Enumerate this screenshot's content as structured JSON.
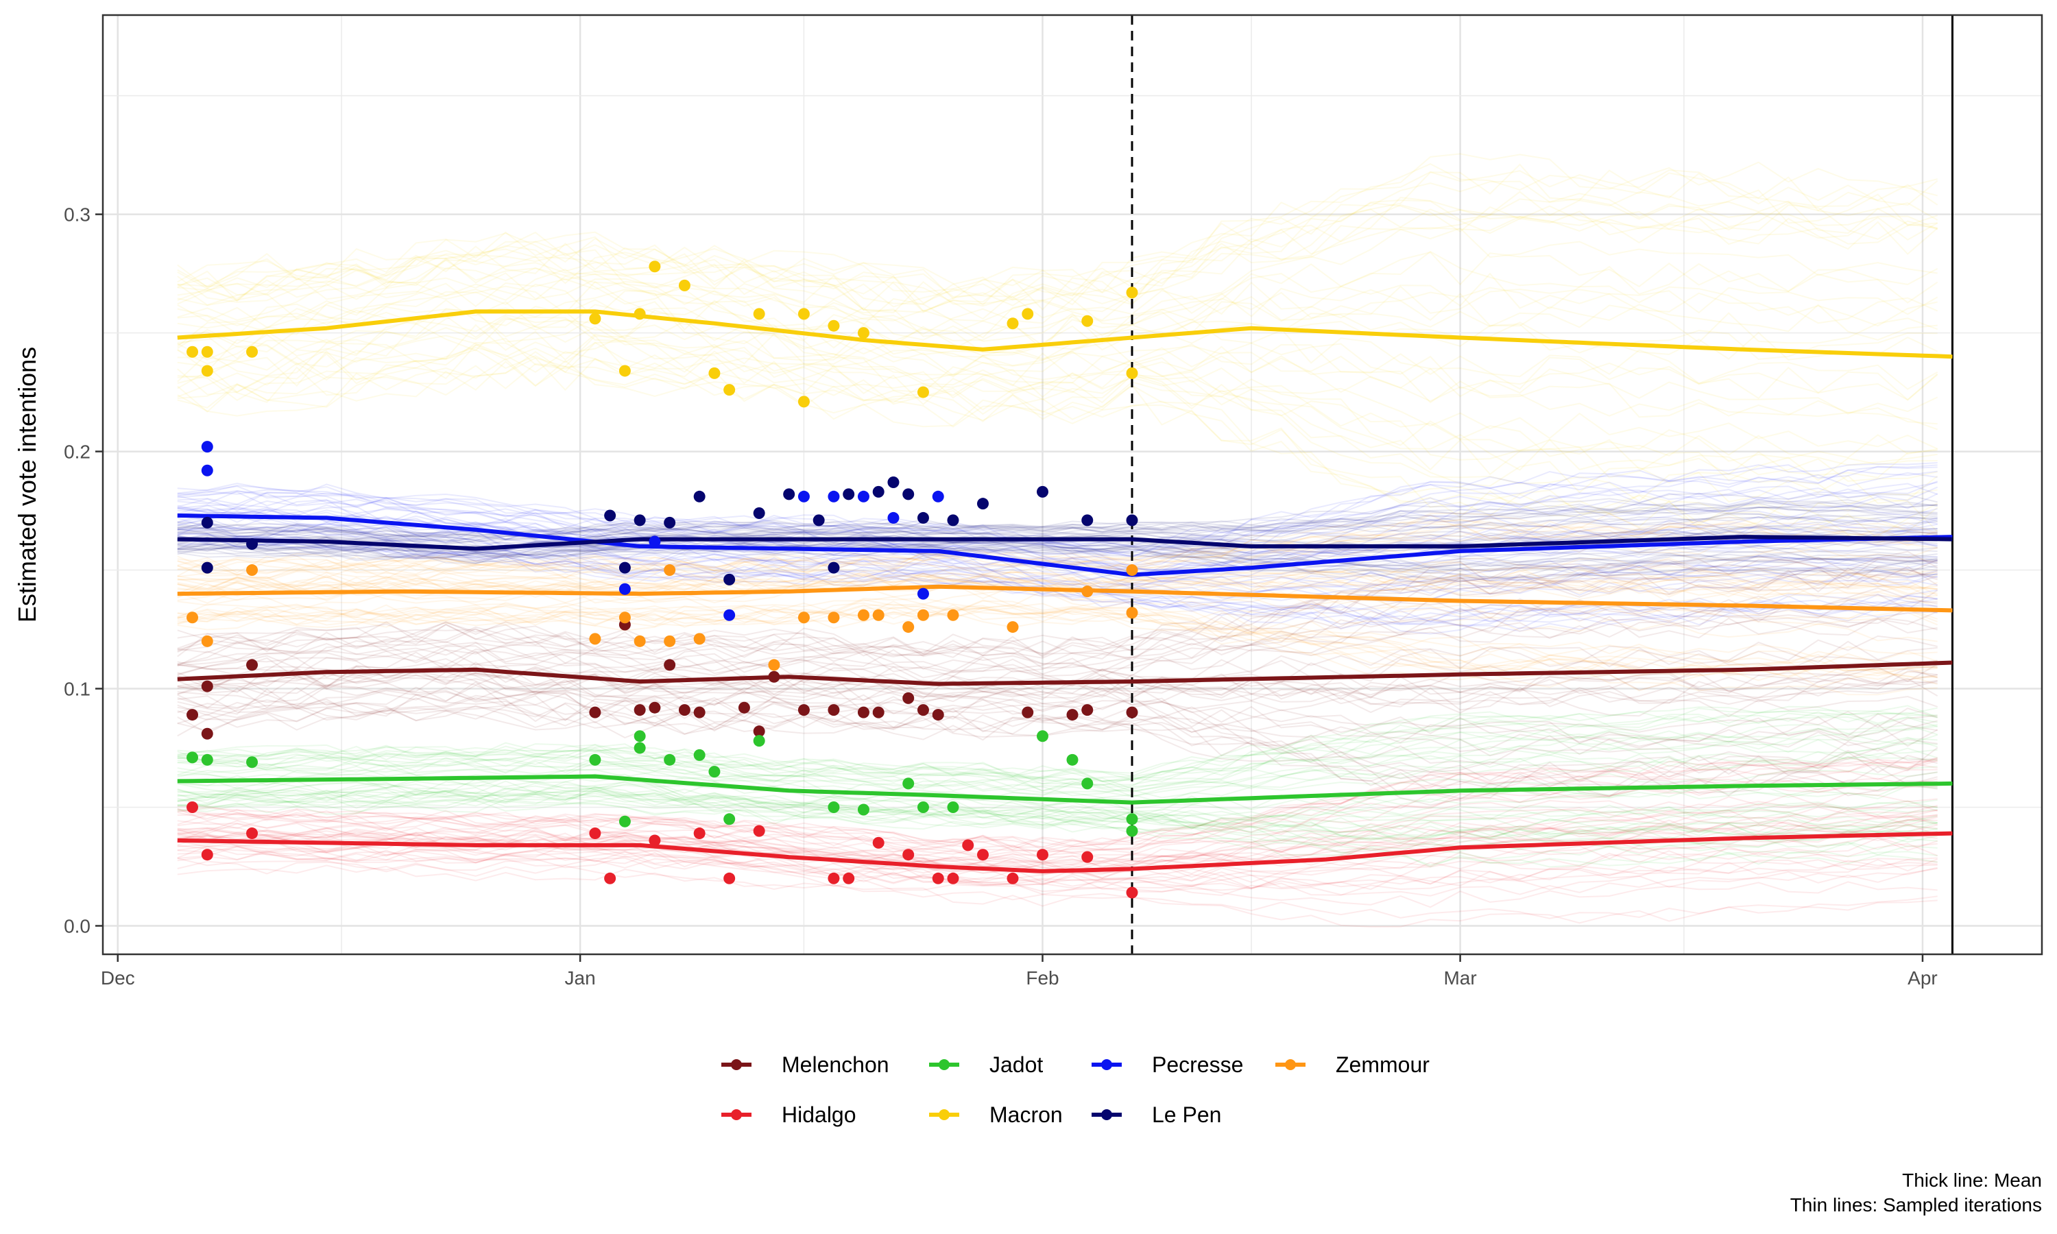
{
  "chart_data": {
    "type": "line",
    "ylabel": "Estimated vote intentions",
    "xlabel": "",
    "x_ticks": [
      {
        "date": "2021-12-01",
        "label": "Dec"
      },
      {
        "date": "2022-01-01",
        "label": "Jan"
      },
      {
        "date": "2022-02-01",
        "label": "Feb"
      },
      {
        "date": "2022-03-01",
        "label": "Mar"
      },
      {
        "date": "2022-04-01",
        "label": "Apr"
      }
    ],
    "xlim": [
      "2021-11-30",
      "2022-04-09"
    ],
    "y_ticks": [
      {
        "value": 0.0,
        "label": "0.0"
      },
      {
        "value": 0.1,
        "label": "0.1"
      },
      {
        "value": 0.2,
        "label": "0.2"
      },
      {
        "value": 0.3,
        "label": "0.3"
      }
    ],
    "ylim": [
      -0.012,
      0.384
    ],
    "grid": true,
    "legend_position": "bottom",
    "reference_lines": [
      {
        "date": "2022-02-07",
        "style": "dashed"
      },
      {
        "date": "2022-04-03",
        "style": "solid"
      }
    ],
    "caption": [
      "Thick line: Mean",
      "Thin lines: Sampled iterations"
    ],
    "series": [
      {
        "name": "Melenchon",
        "color": "#7B1518",
        "spread": 0.02,
        "sampled_iterations": 40,
        "mean": [
          [
            "2021-12-05",
            0.104
          ],
          [
            "2021-12-15",
            0.107
          ],
          [
            "2021-12-25",
            0.108
          ],
          [
            "2022-01-05",
            0.103
          ],
          [
            "2022-01-15",
            0.105
          ],
          [
            "2022-01-25",
            0.102
          ],
          [
            "2022-02-07",
            0.103
          ],
          [
            "2022-03-01",
            0.106
          ],
          [
            "2022-03-20",
            0.108
          ],
          [
            "2022-04-03",
            0.111
          ]
        ],
        "polls": [
          [
            "2021-12-06",
            0.089
          ],
          [
            "2021-12-07",
            0.081
          ],
          [
            "2021-12-07",
            0.101
          ],
          [
            "2021-12-10",
            0.11
          ],
          [
            "2022-01-02",
            0.09
          ],
          [
            "2022-01-04",
            0.127
          ],
          [
            "2022-01-05",
            0.091
          ],
          [
            "2022-01-06",
            0.092
          ],
          [
            "2022-01-07",
            0.11
          ],
          [
            "2022-01-08",
            0.091
          ],
          [
            "2022-01-09",
            0.09
          ],
          [
            "2022-01-12",
            0.092
          ],
          [
            "2022-01-13",
            0.082
          ],
          [
            "2022-01-14",
            0.105
          ],
          [
            "2022-01-16",
            0.091
          ],
          [
            "2022-01-18",
            0.091
          ],
          [
            "2022-01-20",
            0.09
          ],
          [
            "2022-01-21",
            0.09
          ],
          [
            "2022-01-23",
            0.096
          ],
          [
            "2022-01-24",
            0.091
          ],
          [
            "2022-01-25",
            0.089
          ],
          [
            "2022-01-31",
            0.09
          ],
          [
            "2022-02-03",
            0.089
          ],
          [
            "2022-02-04",
            0.091
          ],
          [
            "2022-02-07",
            0.09
          ]
        ]
      },
      {
        "name": "Hidalgo",
        "color": "#E8202A",
        "spread": 0.012,
        "sampled_iterations": 40,
        "mean": [
          [
            "2021-12-05",
            0.036
          ],
          [
            "2021-12-15",
            0.035
          ],
          [
            "2021-12-25",
            0.034
          ],
          [
            "2022-01-05",
            0.034
          ],
          [
            "2022-01-15",
            0.029
          ],
          [
            "2022-01-25",
            0.025
          ],
          [
            "2022-02-01",
            0.023
          ],
          [
            "2022-02-07",
            0.024
          ],
          [
            "2022-02-20",
            0.028
          ],
          [
            "2022-03-01",
            0.033
          ],
          [
            "2022-03-20",
            0.037
          ],
          [
            "2022-04-03",
            0.039
          ]
        ],
        "polls": [
          [
            "2021-12-06",
            0.05
          ],
          [
            "2021-12-07",
            0.03
          ],
          [
            "2021-12-10",
            0.039
          ],
          [
            "2022-01-02",
            0.039
          ],
          [
            "2022-01-03",
            0.02
          ],
          [
            "2022-01-06",
            0.036
          ],
          [
            "2022-01-09",
            0.039
          ],
          [
            "2022-01-11",
            0.02
          ],
          [
            "2022-01-13",
            0.04
          ],
          [
            "2022-01-18",
            0.02
          ],
          [
            "2022-01-19",
            0.02
          ],
          [
            "2022-01-21",
            0.035
          ],
          [
            "2022-01-23",
            0.03
          ],
          [
            "2022-01-25",
            0.02
          ],
          [
            "2022-01-26",
            0.02
          ],
          [
            "2022-01-27",
            0.034
          ],
          [
            "2022-01-28",
            0.03
          ],
          [
            "2022-01-30",
            0.02
          ],
          [
            "2022-02-01",
            0.03
          ],
          [
            "2022-02-04",
            0.029
          ],
          [
            "2022-02-07",
            0.014
          ]
        ]
      },
      {
        "name": "Jadot",
        "color": "#2DC52D",
        "spread": 0.012,
        "sampled_iterations": 40,
        "mean": [
          [
            "2021-12-05",
            0.061
          ],
          [
            "2021-12-20",
            0.062
          ],
          [
            "2022-01-02",
            0.063
          ],
          [
            "2022-01-15",
            0.057
          ],
          [
            "2022-01-25",
            0.055
          ],
          [
            "2022-02-07",
            0.052
          ],
          [
            "2022-02-20",
            0.055
          ],
          [
            "2022-03-01",
            0.057
          ],
          [
            "2022-03-20",
            0.059
          ],
          [
            "2022-04-03",
            0.06
          ]
        ],
        "polls": [
          [
            "2021-12-06",
            0.071
          ],
          [
            "2021-12-07",
            0.07
          ],
          [
            "2021-12-10",
            0.069
          ],
          [
            "2022-01-02",
            0.07
          ],
          [
            "2022-01-04",
            0.044
          ],
          [
            "2022-01-05",
            0.08
          ],
          [
            "2022-01-05",
            0.075
          ],
          [
            "2022-01-07",
            0.07
          ],
          [
            "2022-01-09",
            0.072
          ],
          [
            "2022-01-10",
            0.065
          ],
          [
            "2022-01-11",
            0.045
          ],
          [
            "2022-01-13",
            0.078
          ],
          [
            "2022-01-18",
            0.05
          ],
          [
            "2022-01-20",
            0.049
          ],
          [
            "2022-01-23",
            0.06
          ],
          [
            "2022-01-24",
            0.05
          ],
          [
            "2022-01-26",
            0.05
          ],
          [
            "2022-02-01",
            0.08
          ],
          [
            "2022-02-03",
            0.07
          ],
          [
            "2022-02-04",
            0.06
          ],
          [
            "2022-02-07",
            0.04
          ],
          [
            "2022-02-07",
            0.045
          ]
        ]
      },
      {
        "name": "Macron",
        "color": "#F9CE0A",
        "spread": 0.03,
        "sampled_iterations": 40,
        "mean": [
          [
            "2021-12-05",
            0.248
          ],
          [
            "2021-12-15",
            0.252
          ],
          [
            "2021-12-25",
            0.259
          ],
          [
            "2022-01-02",
            0.259
          ],
          [
            "2022-01-10",
            0.254
          ],
          [
            "2022-01-20",
            0.247
          ],
          [
            "2022-01-28",
            0.243
          ],
          [
            "2022-02-07",
            0.248
          ],
          [
            "2022-02-15",
            0.252
          ],
          [
            "2022-03-01",
            0.248
          ],
          [
            "2022-03-20",
            0.243
          ],
          [
            "2022-04-03",
            0.24
          ]
        ],
        "polls": [
          [
            "2021-12-06",
            0.242
          ],
          [
            "2021-12-07",
            0.242
          ],
          [
            "2021-12-07",
            0.234
          ],
          [
            "2021-12-10",
            0.242
          ],
          [
            "2022-01-02",
            0.256
          ],
          [
            "2022-01-04",
            0.234
          ],
          [
            "2022-01-05",
            0.258
          ],
          [
            "2022-01-06",
            0.278
          ],
          [
            "2022-01-08",
            0.27
          ],
          [
            "2022-01-10",
            0.233
          ],
          [
            "2022-01-11",
            0.226
          ],
          [
            "2022-01-13",
            0.258
          ],
          [
            "2022-01-16",
            0.258
          ],
          [
            "2022-01-16",
            0.221
          ],
          [
            "2022-01-18",
            0.253
          ],
          [
            "2022-01-20",
            0.25
          ],
          [
            "2022-01-24",
            0.225
          ],
          [
            "2022-01-30",
            0.254
          ],
          [
            "2022-01-31",
            0.258
          ],
          [
            "2022-02-04",
            0.255
          ],
          [
            "2022-02-07",
            0.267
          ],
          [
            "2022-02-07",
            0.233
          ]
        ]
      },
      {
        "name": "Pecresse",
        "color": "#0A14F0",
        "spread": 0.013,
        "sampled_iterations": 40,
        "mean": [
          [
            "2021-12-05",
            0.173
          ],
          [
            "2021-12-15",
            0.172
          ],
          [
            "2021-12-25",
            0.167
          ],
          [
            "2022-01-05",
            0.16
          ],
          [
            "2022-01-15",
            0.159
          ],
          [
            "2022-01-25",
            0.158
          ],
          [
            "2022-02-07",
            0.148
          ],
          [
            "2022-02-15",
            0.151
          ],
          [
            "2022-03-01",
            0.158
          ],
          [
            "2022-03-20",
            0.162
          ],
          [
            "2022-04-03",
            0.164
          ]
        ],
        "polls": [
          [
            "2021-12-07",
            0.202
          ],
          [
            "2021-12-07",
            0.192
          ],
          [
            "2022-01-04",
            0.142
          ],
          [
            "2022-01-06",
            0.162
          ],
          [
            "2022-01-11",
            0.131
          ],
          [
            "2022-01-16",
            0.181
          ],
          [
            "2022-01-18",
            0.181
          ],
          [
            "2022-01-20",
            0.181
          ],
          [
            "2022-01-22",
            0.172
          ],
          [
            "2022-01-24",
            0.14
          ],
          [
            "2022-01-25",
            0.181
          ]
        ]
      },
      {
        "name": "Le Pen",
        "color": "#05056E",
        "spread": 0.007,
        "sampled_iterations": 40,
        "mean": [
          [
            "2021-12-05",
            0.163
          ],
          [
            "2021-12-15",
            0.162
          ],
          [
            "2021-12-25",
            0.159
          ],
          [
            "2022-01-05",
            0.163
          ],
          [
            "2022-01-15",
            0.163
          ],
          [
            "2022-01-25",
            0.163
          ],
          [
            "2022-02-07",
            0.163
          ],
          [
            "2022-02-15",
            0.16
          ],
          [
            "2022-03-01",
            0.16
          ],
          [
            "2022-03-20",
            0.164
          ],
          [
            "2022-04-03",
            0.163
          ]
        ],
        "polls": [
          [
            "2021-12-07",
            0.17
          ],
          [
            "2021-12-07",
            0.151
          ],
          [
            "2021-12-10",
            0.161
          ],
          [
            "2022-01-03",
            0.173
          ],
          [
            "2022-01-04",
            0.151
          ],
          [
            "2022-01-05",
            0.171
          ],
          [
            "2022-01-07",
            0.17
          ],
          [
            "2022-01-09",
            0.181
          ],
          [
            "2022-01-11",
            0.146
          ],
          [
            "2022-01-13",
            0.174
          ],
          [
            "2022-01-15",
            0.182
          ],
          [
            "2022-01-17",
            0.171
          ],
          [
            "2022-01-18",
            0.151
          ],
          [
            "2022-01-19",
            0.182
          ],
          [
            "2022-01-21",
            0.183
          ],
          [
            "2022-01-22",
            0.187
          ],
          [
            "2022-01-23",
            0.182
          ],
          [
            "2022-01-24",
            0.172
          ],
          [
            "2022-01-26",
            0.171
          ],
          [
            "2022-01-28",
            0.178
          ],
          [
            "2022-02-01",
            0.183
          ],
          [
            "2022-02-04",
            0.171
          ],
          [
            "2022-02-07",
            0.171
          ]
        ]
      },
      {
        "name": "Zemmour",
        "color": "#FF9614",
        "spread": 0.014,
        "sampled_iterations": 40,
        "mean": [
          [
            "2021-12-05",
            0.14
          ],
          [
            "2021-12-20",
            0.141
          ],
          [
            "2022-01-05",
            0.14
          ],
          [
            "2022-01-15",
            0.141
          ],
          [
            "2022-01-25",
            0.143
          ],
          [
            "2022-02-07",
            0.141
          ],
          [
            "2022-03-01",
            0.137
          ],
          [
            "2022-03-20",
            0.135
          ],
          [
            "2022-04-03",
            0.133
          ]
        ],
        "polls": [
          [
            "2021-12-06",
            0.13
          ],
          [
            "2021-12-07",
            0.12
          ],
          [
            "2021-12-10",
            0.15
          ],
          [
            "2022-01-02",
            0.121
          ],
          [
            "2022-01-04",
            0.13
          ],
          [
            "2022-01-05",
            0.12
          ],
          [
            "2022-01-07",
            0.15
          ],
          [
            "2022-01-07",
            0.12
          ],
          [
            "2022-01-09",
            0.121
          ],
          [
            "2022-01-14",
            0.11
          ],
          [
            "2022-01-16",
            0.13
          ],
          [
            "2022-01-18",
            0.13
          ],
          [
            "2022-01-20",
            0.131
          ],
          [
            "2022-01-21",
            0.131
          ],
          [
            "2022-01-23",
            0.126
          ],
          [
            "2022-01-24",
            0.131
          ],
          [
            "2022-01-26",
            0.131
          ],
          [
            "2022-01-30",
            0.126
          ],
          [
            "2022-02-04",
            0.141
          ],
          [
            "2022-02-07",
            0.15
          ],
          [
            "2022-02-07",
            0.132
          ]
        ]
      }
    ],
    "legend_rows": [
      [
        "Melenchon",
        "Jadot",
        "Pecresse",
        "Zemmour"
      ],
      [
        "Hidalgo",
        "Macron",
        "Le Pen"
      ]
    ]
  }
}
